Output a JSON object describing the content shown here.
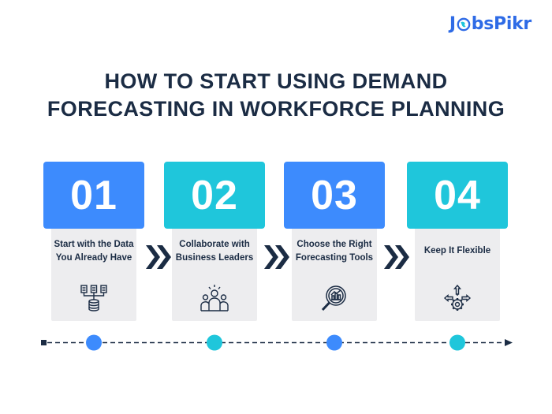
{
  "logo": {
    "part1": "J",
    "part2": "bsPikr",
    "globe_icon": "globe-icon"
  },
  "title": {
    "line1": "HOW TO START USING DEMAND",
    "line2": "FORECASTING IN WORKFORCE PLANNING"
  },
  "colors": {
    "blue": "#3D8BFD",
    "cyan": "#1FC6DB",
    "dark": "#1B2C44",
    "card_bg": "#EDEDEF"
  },
  "steps": [
    {
      "number": "01",
      "label": "Start with the Data You Already Have",
      "icon": "data-sources-icon"
    },
    {
      "number": "02",
      "label": "Collaborate with Business Leaders",
      "icon": "team-collaboration-icon"
    },
    {
      "number": "03",
      "label": "Choose the Right Forecasting Tools",
      "icon": "magnifier-chart-icon"
    },
    {
      "number": "04",
      "label": "Keep It Flexible",
      "icon": "flexible-gear-icon"
    }
  ]
}
